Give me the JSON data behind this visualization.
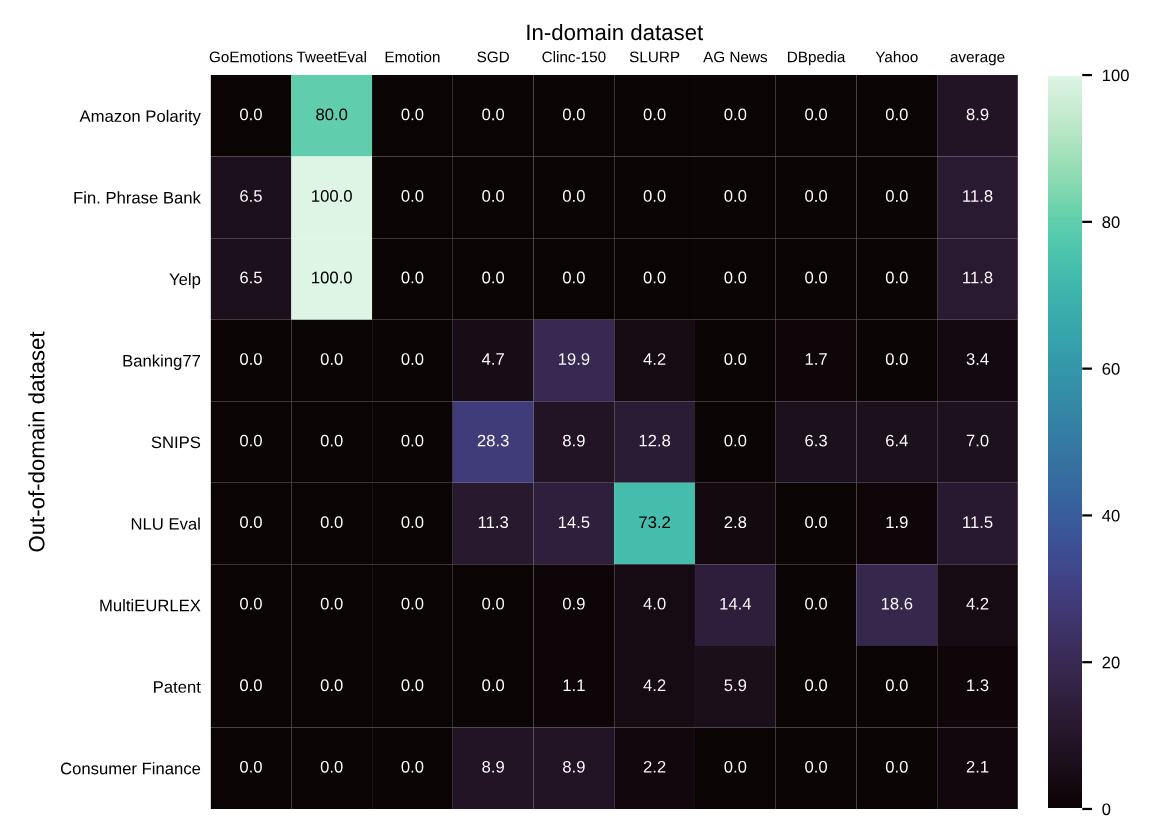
{
  "chart_data": {
    "type": "heatmap",
    "xlabel": "In-domain dataset",
    "ylabel": "Out-of-domain dataset",
    "categories": [
      "GoEmotions",
      "TweetEval",
      "Emotion",
      "SGD",
      "Clinc-150",
      "SLURP",
      "AG News",
      "DBpedia",
      "Yahoo",
      "average"
    ],
    "y_categories": [
      "Amazon Polarity",
      "Fin. Phrase Bank",
      "Yelp",
      "Banking77",
      "SNIPS",
      "NLU Eval",
      "MultiEURLEX",
      "Patent",
      "Consumer Finance"
    ],
    "cells": [
      [
        0.0,
        80.0,
        0.0,
        0.0,
        0.0,
        0.0,
        0.0,
        0.0,
        0.0,
        8.9
      ],
      [
        6.5,
        100.0,
        0.0,
        0.0,
        0.0,
        0.0,
        0.0,
        0.0,
        0.0,
        11.8
      ],
      [
        6.5,
        100.0,
        0.0,
        0.0,
        0.0,
        0.0,
        0.0,
        0.0,
        0.0,
        11.8
      ],
      [
        0.0,
        0.0,
        0.0,
        4.7,
        19.9,
        4.2,
        0.0,
        1.7,
        0.0,
        3.4
      ],
      [
        0.0,
        0.0,
        0.0,
        28.3,
        8.9,
        12.8,
        0.0,
        6.3,
        6.4,
        7.0
      ],
      [
        0.0,
        0.0,
        0.0,
        11.3,
        14.5,
        73.2,
        2.8,
        0.0,
        1.9,
        11.5
      ],
      [
        0.0,
        0.0,
        0.0,
        0.0,
        0.9,
        4.0,
        14.4,
        0.0,
        18.6,
        4.2
      ],
      [
        0.0,
        0.0,
        0.0,
        0.0,
        1.1,
        4.2,
        5.9,
        0.0,
        0.0,
        1.3
      ],
      [
        0.0,
        0.0,
        0.0,
        8.9,
        8.9,
        2.2,
        0.0,
        0.0,
        0.0,
        2.1
      ]
    ],
    "cell_labels": [
      [
        "0.0",
        "80.0",
        "0.0",
        "0.0",
        "0.0",
        "0.0",
        "0.0",
        "0.0",
        "0.0",
        "8.9"
      ],
      [
        "6.5",
        "100.0",
        "0.0",
        "0.0",
        "0.0",
        "0.0",
        "0.0",
        "0.0",
        "0.0",
        "11.8"
      ],
      [
        "6.5",
        "100.0",
        "0.0",
        "0.0",
        "0.0",
        "0.0",
        "0.0",
        "0.0",
        "0.0",
        "11.8"
      ],
      [
        "0.0",
        "0.0",
        "0.0",
        "4.7",
        "19.9",
        "4.2",
        "0.0",
        "1.7",
        "0.0",
        "3.4"
      ],
      [
        "0.0",
        "0.0",
        "0.0",
        "28.3",
        "8.9",
        "12.8",
        "0.0",
        "6.3",
        "6.4",
        "7.0"
      ],
      [
        "0.0",
        "0.0",
        "0.0",
        "11.3",
        "14.5",
        "73.2",
        "2.8",
        "0.0",
        "1.9",
        "11.5"
      ],
      [
        "0.0",
        "0.0",
        "0.0",
        "0.0",
        "0.9",
        "4.0",
        "14.4",
        "0.0",
        "18.6",
        "4.2"
      ],
      [
        "0.0",
        "0.0",
        "0.0",
        "0.0",
        "1.1",
        "4.2",
        "5.9",
        "0.0",
        "0.0",
        "1.3"
      ],
      [
        "0.0",
        "0.0",
        "0.0",
        "8.9",
        "8.9",
        "2.2",
        "0.0",
        "0.0",
        "0.0",
        "2.1"
      ]
    ],
    "clim": [
      0,
      100
    ],
    "cticks": [
      0,
      20,
      40,
      60,
      80,
      100
    ]
  }
}
